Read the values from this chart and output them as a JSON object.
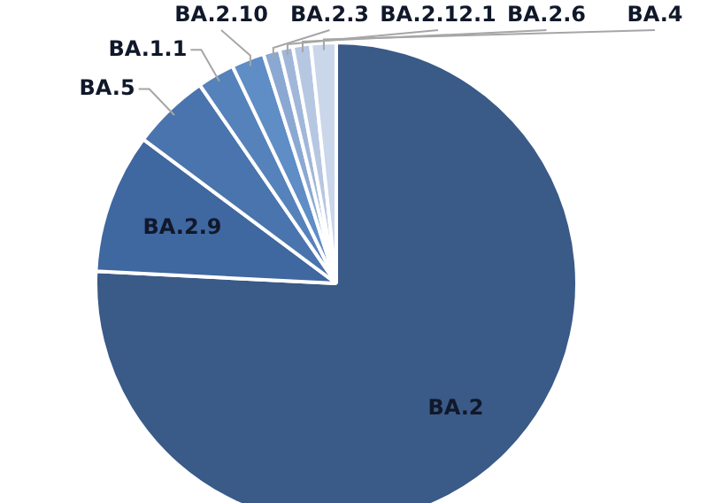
{
  "chart_data": {
    "type": "pie",
    "categories": [
      "BA.2",
      "BA.2.9",
      "BA.5",
      "BA.1.1",
      "BA.2.10",
      "BA.2.3",
      "BA.2.12.1",
      "BA.2.6",
      "BA.4"
    ],
    "values": [
      75.8,
      9.4,
      5.2,
      2.5,
      2.2,
      1.1,
      0.9,
      1.2,
      1.7
    ],
    "colors": [
      "#3a5a87",
      "#3f67a0",
      "#4a74ad",
      "#5582bb",
      "#5f8dc6",
      "#8aa8d2",
      "#a0b7da",
      "#b6c7e2",
      "#cad6ea"
    ]
  }
}
